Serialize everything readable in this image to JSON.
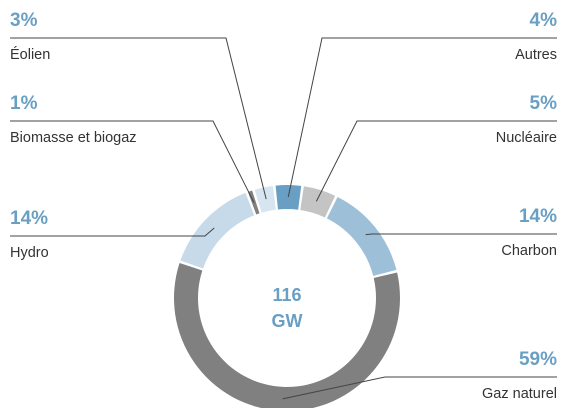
{
  "chart_data": {
    "type": "donut",
    "categories": [
      "Autres",
      "Nucléaire",
      "Charbon",
      "Gaz naturel",
      "Hydro",
      "Biomasse et biogaz",
      "Éolien"
    ],
    "values": [
      4,
      5,
      14,
      59,
      14,
      1,
      3
    ],
    "value_labels": [
      "4%",
      "5%",
      "14%",
      "59%",
      "14%",
      "1%",
      "3%"
    ],
    "colors": [
      "#6a9fc4",
      "#c4c4c4",
      "#9dbfd8",
      "#808080",
      "#c6dae9",
      "#808080",
      "#d6e5f0"
    ],
    "center_value": "116",
    "center_unit": "GW"
  }
}
